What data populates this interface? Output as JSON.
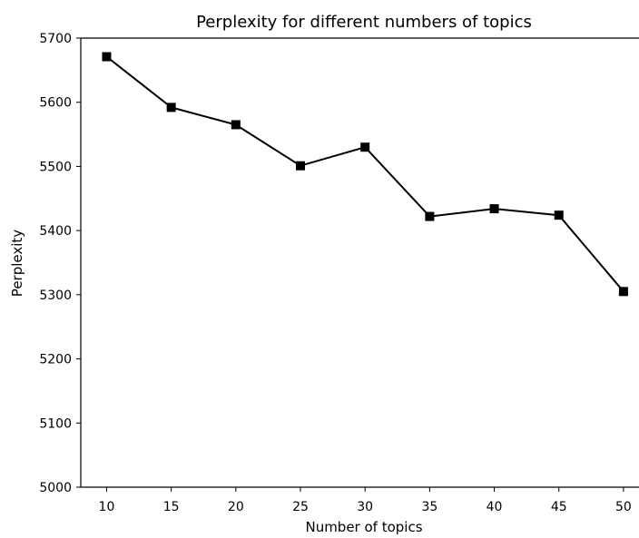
{
  "chart_data": {
    "type": "line",
    "title": "Perplexity for different numbers of topics",
    "xlabel": "Number of topics",
    "ylabel": "Perplexity",
    "x": [
      10,
      15,
      20,
      25,
      30,
      35,
      40,
      45,
      50
    ],
    "xticks": [
      "10",
      "15",
      "20",
      "25",
      "30",
      "35",
      "40",
      "45",
      "50"
    ],
    "yticks": [
      "5000",
      "5100",
      "5200",
      "5300",
      "5400",
      "5500",
      "5600",
      "5700"
    ],
    "ylim": [
      5000,
      5700
    ],
    "xlim": [
      8,
      51.2
    ],
    "grid": false,
    "series": [
      {
        "values": [
          5671,
          5592,
          5565,
          5501,
          5530,
          5422,
          5434,
          5424,
          5305
        ],
        "color": "#000000",
        "marker": "square"
      }
    ]
  }
}
